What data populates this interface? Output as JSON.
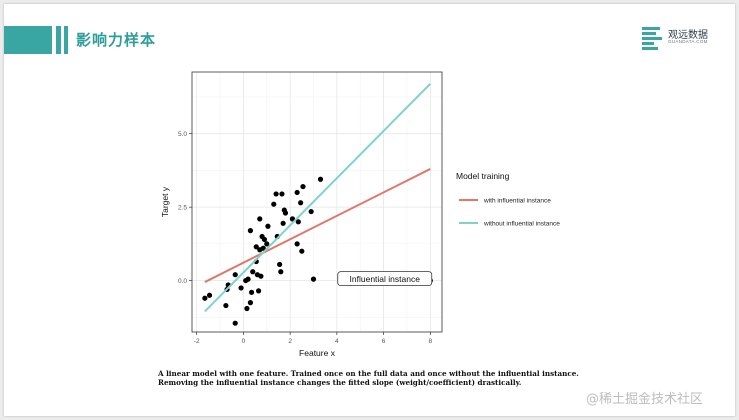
{
  "header": {
    "title": "影响力样本"
  },
  "logo": {
    "name": "观远数据",
    "sub": "GUANDATA.COM",
    "icon": "stacked-bars-logo-icon"
  },
  "caption": "A linear model with one feature. Trained once on the full data and once without the influential instance. Removing the influential instance changes the fitted slope (weight/coefficient) drastically.",
  "watermark": "@稀土掘金技术社区",
  "colors": {
    "accent": "#3aa6a3",
    "with_line": "#e0786a",
    "without_line": "#7fd3ce"
  },
  "chart_data": {
    "type": "scatter",
    "xlabel": "Feature x",
    "ylabel": "Target y",
    "xlim": [
      -2.2,
      8.5
    ],
    "ylim": [
      -1.75,
      7.1
    ],
    "xticks": [
      -2,
      0,
      2,
      4,
      6,
      8
    ],
    "yticks": [
      0.0,
      2.5,
      5.0
    ],
    "xtick_labels": [
      "-2",
      "0",
      "2",
      "4",
      "6",
      "8"
    ],
    "ytick_labels": [
      "0.0",
      "2.5",
      "5.0"
    ],
    "grid": true,
    "points": [
      {
        "x": -1.65,
        "y": -0.6
      },
      {
        "x": -1.45,
        "y": -0.5
      },
      {
        "x": -0.75,
        "y": -0.85
      },
      {
        "x": -0.65,
        "y": -0.15
      },
      {
        "x": -0.7,
        "y": -0.3
      },
      {
        "x": -0.35,
        "y": 0.2
      },
      {
        "x": -0.35,
        "y": -1.45
      },
      {
        "x": -0.1,
        "y": -0.25
      },
      {
        "x": 0.1,
        "y": 0.0
      },
      {
        "x": 0.15,
        "y": -0.95
      },
      {
        "x": 0.2,
        "y": 0.05
      },
      {
        "x": 0.3,
        "y": -0.75
      },
      {
        "x": 0.35,
        "y": -0.4
      },
      {
        "x": 0.4,
        "y": 0.3
      },
      {
        "x": 0.55,
        "y": 0.65
      },
      {
        "x": 0.6,
        "y": 0.2
      },
      {
        "x": 0.65,
        "y": -0.35
      },
      {
        "x": 0.75,
        "y": 0.15
      },
      {
        "x": 0.55,
        "y": 1.15
      },
      {
        "x": 0.7,
        "y": 1.05
      },
      {
        "x": 0.8,
        "y": 1.5
      },
      {
        "x": 0.85,
        "y": 1.1
      },
      {
        "x": 0.9,
        "y": 1.4
      },
      {
        "x": 0.3,
        "y": 1.7
      },
      {
        "x": 0.7,
        "y": 2.1
      },
      {
        "x": 1.0,
        "y": 1.25
      },
      {
        "x": 1.05,
        "y": 1.85
      },
      {
        "x": 1.3,
        "y": 2.6
      },
      {
        "x": 1.45,
        "y": 1.5
      },
      {
        "x": 1.4,
        "y": 2.95
      },
      {
        "x": 1.55,
        "y": 0.55
      },
      {
        "x": 1.6,
        "y": 0.3
      },
      {
        "x": 1.75,
        "y": 2.4
      },
      {
        "x": 1.65,
        "y": 2.95
      },
      {
        "x": 1.8,
        "y": 2.3
      },
      {
        "x": 1.7,
        "y": 1.95
      },
      {
        "x": 2.1,
        "y": 2.1
      },
      {
        "x": 2.3,
        "y": 1.25
      },
      {
        "x": 2.3,
        "y": 3.0
      },
      {
        "x": 2.35,
        "y": 2.0
      },
      {
        "x": 2.45,
        "y": 2.65
      },
      {
        "x": 2.5,
        "y": 1.0
      },
      {
        "x": 2.55,
        "y": 3.2
      },
      {
        "x": 2.9,
        "y": 2.35
      },
      {
        "x": 3.0,
        "y": 0.05
      },
      {
        "x": 3.3,
        "y": 3.45
      },
      {
        "x": 8.0,
        "y": 0.0
      }
    ],
    "lines": [
      {
        "name": "with influential instance",
        "x": [
          -1.65,
          8.0
        ],
        "y": [
          -0.05,
          3.8
        ]
      },
      {
        "name": "without influential instance",
        "x": [
          -1.65,
          8.0
        ],
        "y": [
          -1.05,
          6.7
        ]
      }
    ],
    "annotation": {
      "text": "Influential instance",
      "x": 6.05,
      "y": 0.05
    },
    "legend": {
      "title": "Model training",
      "placement": "right",
      "entries": [
        "with influential instance",
        "without influential instance"
      ]
    }
  }
}
